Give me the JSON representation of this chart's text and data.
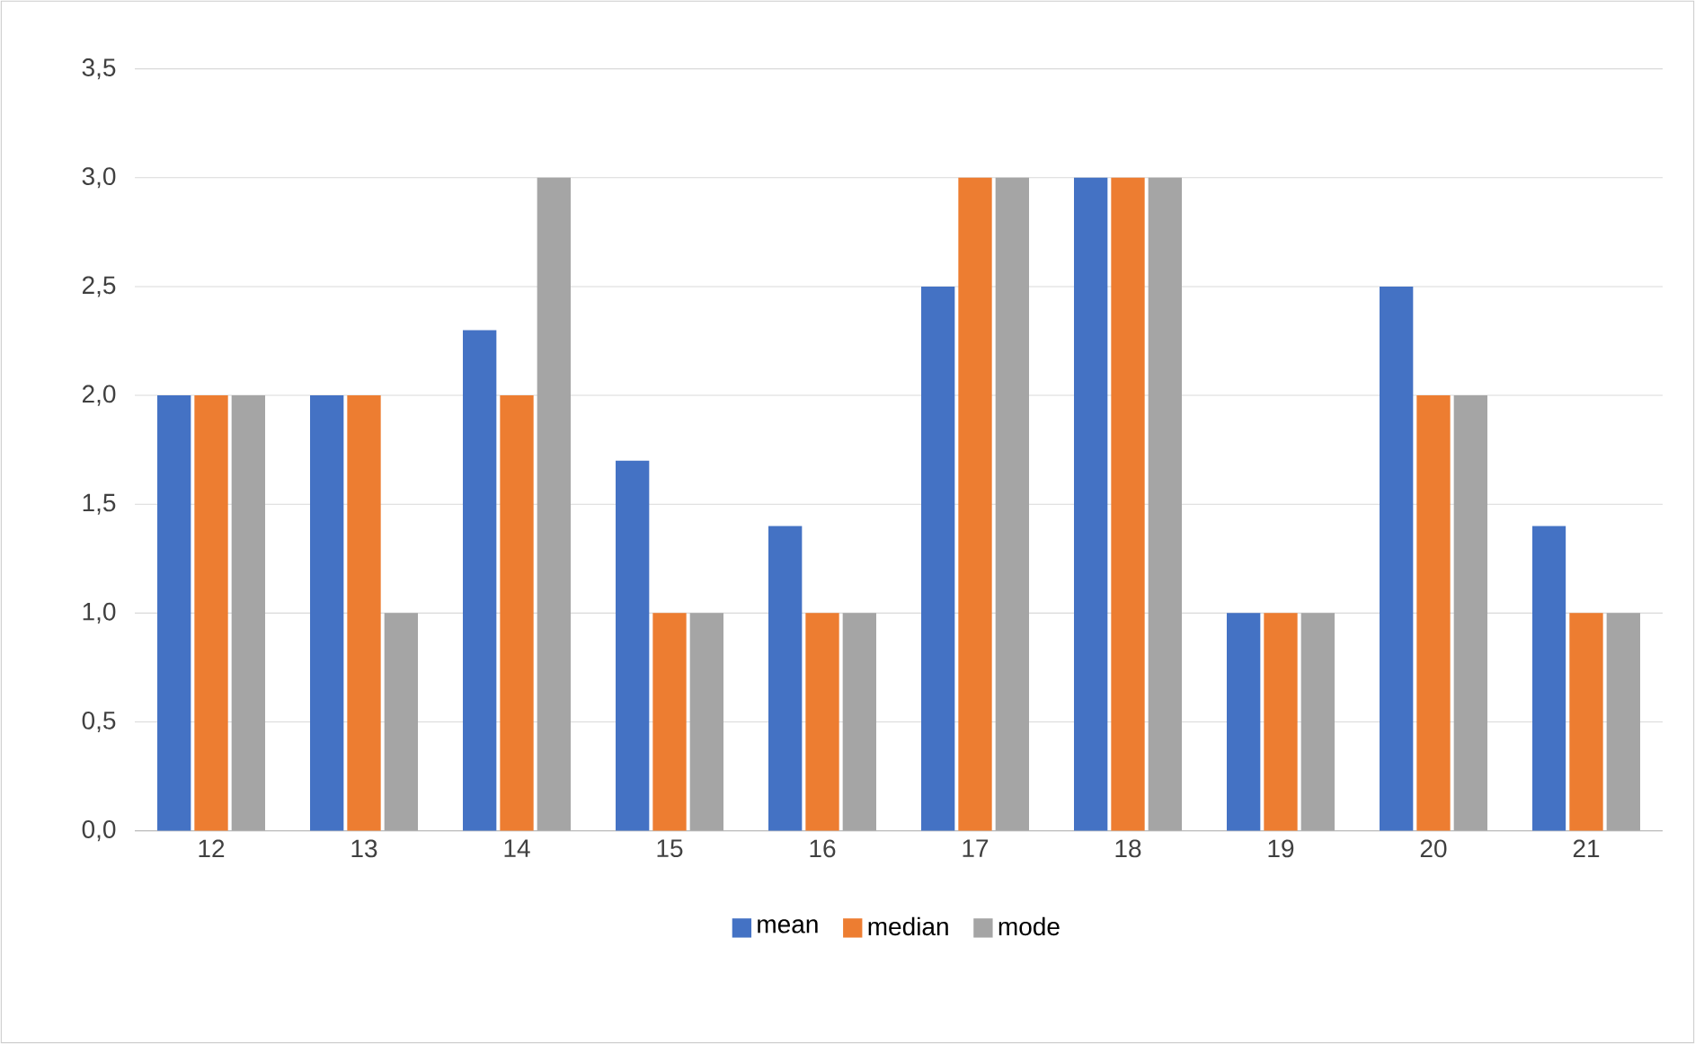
{
  "chart_data": {
    "type": "bar",
    "categories": [
      "12",
      "13",
      "14",
      "15",
      "16",
      "17",
      "18",
      "19",
      "20",
      "21"
    ],
    "series": [
      {
        "name": "mean",
        "color": "#4472c4",
        "values": [
          2,
          2,
          2.3,
          1.7,
          1.4,
          2.5,
          3,
          1,
          2.5,
          1.4
        ]
      },
      {
        "name": "median",
        "color": "#ed7d31",
        "values": [
          2,
          2,
          2,
          1,
          1,
          3,
          3,
          1,
          2,
          1
        ]
      },
      {
        "name": "mode",
        "color": "#a5a5a5",
        "values": [
          2,
          1,
          3,
          1,
          1,
          3,
          3,
          1,
          2,
          1
        ]
      }
    ],
    "ylim": [
      0,
      3.5
    ],
    "yticks": [
      {
        "value": 0,
        "label": "0,0"
      },
      {
        "value": 0.5,
        "label": "0,5"
      },
      {
        "value": 1,
        "label": "1,0"
      },
      {
        "value": 1.5,
        "label": "1,5"
      },
      {
        "value": 2,
        "label": "2,0"
      },
      {
        "value": 2.5,
        "label": "2,5"
      },
      {
        "value": 3,
        "label": "3,0"
      },
      {
        "value": 3.5,
        "label": "3,5"
      }
    ],
    "grid": "y",
    "legend": "bottom"
  }
}
